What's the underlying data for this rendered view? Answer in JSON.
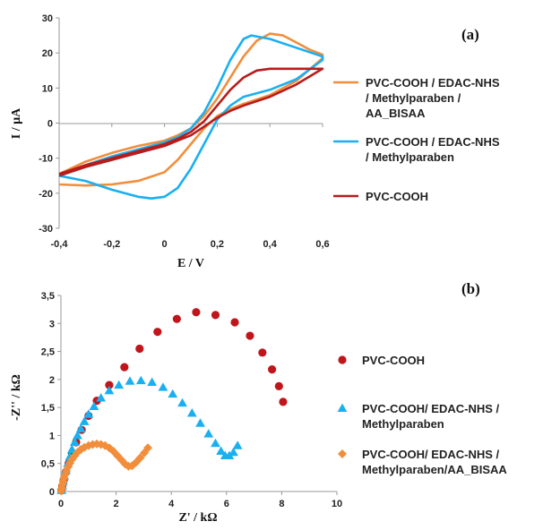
{
  "chart_data": [
    {
      "panel_label": "(a)",
      "type": "line",
      "xlabel": "E / V",
      "ylabel": "I / µA",
      "xlim": [
        -0.4,
        0.6
      ],
      "ylim": [
        -30,
        30
      ],
      "x_ticks": [
        "-0,4",
        "-0,2",
        "0",
        "0,2",
        "0,4",
        "0,6"
      ],
      "y_ticks": [
        "-30",
        "-20",
        "-10",
        "0",
        "10",
        "20",
        "30"
      ],
      "grid": false,
      "legend_position": "right",
      "series": [
        {
          "name_lines": [
            "PVC-COOH / EDAC-NHS",
            "/ Methylparaben /",
            "AA_BISAA"
          ],
          "color": "#f28e3b",
          "forward": [
            [
              -0.4,
              -14.5
            ],
            [
              -0.3,
              -11
            ],
            [
              -0.2,
              -8.5
            ],
            [
              -0.1,
              -6.5
            ],
            [
              0.0,
              -5
            ],
            [
              0.05,
              -3.5
            ],
            [
              0.1,
              -1.5
            ],
            [
              0.15,
              2
            ],
            [
              0.2,
              7
            ],
            [
              0.25,
              13
            ],
            [
              0.3,
              19
            ],
            [
              0.35,
              23.5
            ],
            [
              0.4,
              25.5
            ],
            [
              0.45,
              25
            ],
            [
              0.5,
              23
            ],
            [
              0.55,
              21
            ],
            [
              0.6,
              19.5
            ]
          ],
          "reverse": [
            [
              0.6,
              18.5
            ],
            [
              0.5,
              12
            ],
            [
              0.4,
              8
            ],
            [
              0.3,
              5.5
            ],
            [
              0.25,
              4
            ],
            [
              0.2,
              2
            ],
            [
              0.15,
              -1.5
            ],
            [
              0.1,
              -6
            ],
            [
              0.05,
              -10.5
            ],
            [
              0.0,
              -14
            ],
            [
              -0.1,
              -16.5
            ],
            [
              -0.2,
              -17.5
            ],
            [
              -0.3,
              -17.8
            ],
            [
              -0.4,
              -17.5
            ]
          ]
        },
        {
          "name_lines": [
            "PVC-COOH  / EDAC-NHS",
            "/ Methylparaben"
          ],
          "color": "#1ab0f0",
          "forward": [
            [
              -0.4,
              -15
            ],
            [
              -0.3,
              -12
            ],
            [
              -0.2,
              -9.5
            ],
            [
              -0.1,
              -7.5
            ],
            [
              0.0,
              -5.5
            ],
            [
              0.05,
              -4
            ],
            [
              0.1,
              -1.5
            ],
            [
              0.15,
              3
            ],
            [
              0.2,
              10
            ],
            [
              0.25,
              18
            ],
            [
              0.3,
              24
            ],
            [
              0.33,
              25
            ],
            [
              0.4,
              24
            ],
            [
              0.5,
              21.5
            ],
            [
              0.6,
              19
            ]
          ],
          "reverse": [
            [
              0.6,
              18
            ],
            [
              0.5,
              12.5
            ],
            [
              0.4,
              9.5
            ],
            [
              0.3,
              7.5
            ],
            [
              0.25,
              5
            ],
            [
              0.2,
              1
            ],
            [
              0.15,
              -6
            ],
            [
              0.1,
              -13
            ],
            [
              0.05,
              -18.5
            ],
            [
              0.0,
              -21
            ],
            [
              -0.05,
              -21.5
            ],
            [
              -0.1,
              -21
            ],
            [
              -0.2,
              -19
            ],
            [
              -0.3,
              -16.5
            ],
            [
              -0.4,
              -15
            ]
          ]
        },
        {
          "name_lines": [
            "PVC-COOH"
          ],
          "color": "#b71c1c",
          "forward": [
            [
              -0.4,
              -14.5
            ],
            [
              -0.3,
              -12
            ],
            [
              -0.2,
              -10
            ],
            [
              -0.1,
              -8
            ],
            [
              0.0,
              -6
            ],
            [
              0.05,
              -4.5
            ],
            [
              0.1,
              -2.5
            ],
            [
              0.15,
              0.5
            ],
            [
              0.2,
              5
            ],
            [
              0.25,
              9.5
            ],
            [
              0.3,
              13
            ],
            [
              0.35,
              15
            ],
            [
              0.4,
              15.5
            ],
            [
              0.5,
              15.5
            ],
            [
              0.6,
              15.5
            ]
          ],
          "reverse": [
            [
              0.6,
              15.5
            ],
            [
              0.5,
              11
            ],
            [
              0.4,
              7.5
            ],
            [
              0.3,
              5
            ],
            [
              0.25,
              3.5
            ],
            [
              0.2,
              1.5
            ],
            [
              0.15,
              -1
            ],
            [
              0.1,
              -3.5
            ],
            [
              0.05,
              -5
            ],
            [
              0.0,
              -6.5
            ],
            [
              -0.1,
              -8.5
            ],
            [
              -0.2,
              -10.5
            ],
            [
              -0.3,
              -12.5
            ],
            [
              -0.4,
              -15
            ]
          ]
        }
      ]
    },
    {
      "panel_label": "(b)",
      "type": "scatter",
      "xlabel": "Z' / kΩ",
      "ylabel": "-Z'' / kΩ",
      "xlim": [
        0,
        10
      ],
      "ylim": [
        0,
        3.5
      ],
      "x_ticks": [
        "0",
        "2",
        "4",
        "6",
        "8",
        "10"
      ],
      "y_ticks": [
        "0",
        "0,5",
        "1",
        "1,5",
        "2",
        "2,5",
        "3",
        "3,5"
      ],
      "grid": false,
      "legend_position": "right",
      "series": [
        {
          "name_lines": [
            "PVC-COOH"
          ],
          "color": "#c0161b",
          "marker": "circle",
          "points": [
            [
              0.02,
              0.02
            ],
            [
              0.05,
              0.1
            ],
            [
              0.1,
              0.2
            ],
            [
              0.18,
              0.35
            ],
            [
              0.28,
              0.5
            ],
            [
              0.4,
              0.68
            ],
            [
              0.55,
              0.88
            ],
            [
              0.75,
              1.1
            ],
            [
              1.0,
              1.35
            ],
            [
              1.3,
              1.62
            ],
            [
              1.75,
              1.9
            ],
            [
              2.3,
              2.22
            ],
            [
              2.85,
              2.55
            ],
            [
              3.5,
              2.85
            ],
            [
              4.2,
              3.08
            ],
            [
              4.9,
              3.2
            ],
            [
              5.6,
              3.15
            ],
            [
              6.3,
              3.02
            ],
            [
              6.85,
              2.78
            ],
            [
              7.3,
              2.48
            ],
            [
              7.65,
              2.18
            ],
            [
              7.9,
              1.88
            ],
            [
              8.05,
              1.6
            ]
          ]
        },
        {
          "name_lines": [
            "PVC-COOH/ EDAC-NHS /",
            "Methylparaben"
          ],
          "color": "#1ab0f0",
          "marker": "triangle",
          "points": [
            [
              0.02,
              0.02
            ],
            [
              0.05,
              0.1
            ],
            [
              0.08,
              0.18
            ],
            [
              0.12,
              0.28
            ],
            [
              0.18,
              0.38
            ],
            [
              0.25,
              0.5
            ],
            [
              0.32,
              0.62
            ],
            [
              0.4,
              0.75
            ],
            [
              0.5,
              0.88
            ],
            [
              0.6,
              1.0
            ],
            [
              0.72,
              1.12
            ],
            [
              0.85,
              1.25
            ],
            [
              1.0,
              1.38
            ],
            [
              1.2,
              1.52
            ],
            [
              1.45,
              1.67
            ],
            [
              1.75,
              1.8
            ],
            [
              2.1,
              1.9
            ],
            [
              2.5,
              1.97
            ],
            [
              2.9,
              1.98
            ],
            [
              3.3,
              1.95
            ],
            [
              3.7,
              1.86
            ],
            [
              4.05,
              1.74
            ],
            [
              4.4,
              1.58
            ],
            [
              4.75,
              1.4
            ],
            [
              5.05,
              1.22
            ],
            [
              5.35,
              1.03
            ],
            [
              5.6,
              0.86
            ],
            [
              5.8,
              0.72
            ],
            [
              5.95,
              0.64
            ],
            [
              6.1,
              0.64
            ],
            [
              6.25,
              0.7
            ],
            [
              6.4,
              0.82
            ]
          ]
        },
        {
          "name_lines": [
            "PVC-COOH/ EDAC-NHS /",
            "Methylparaben/AA_BISAA"
          ],
          "color": "#f28e3b",
          "marker": "diamond",
          "points": [
            [
              0.01,
              0.01
            ],
            [
              0.03,
              0.06
            ],
            [
              0.05,
              0.12
            ],
            [
              0.08,
              0.18
            ],
            [
              0.11,
              0.24
            ],
            [
              0.15,
              0.3
            ],
            [
              0.2,
              0.37
            ],
            [
              0.26,
              0.44
            ],
            [
              0.33,
              0.51
            ],
            [
              0.41,
              0.58
            ],
            [
              0.5,
              0.64
            ],
            [
              0.6,
              0.7
            ],
            [
              0.72,
              0.75
            ],
            [
              0.85,
              0.79
            ],
            [
              1.0,
              0.82
            ],
            [
              1.15,
              0.84
            ],
            [
              1.3,
              0.85
            ],
            [
              1.45,
              0.84
            ],
            [
              1.6,
              0.82
            ],
            [
              1.75,
              0.78
            ],
            [
              1.9,
              0.72
            ],
            [
              2.05,
              0.64
            ],
            [
              2.2,
              0.56
            ],
            [
              2.33,
              0.49
            ],
            [
              2.45,
              0.45
            ],
            [
              2.58,
              0.46
            ],
            [
              2.72,
              0.52
            ],
            [
              2.87,
              0.6
            ],
            [
              3.02,
              0.69
            ],
            [
              3.15,
              0.78
            ]
          ]
        }
      ]
    }
  ]
}
